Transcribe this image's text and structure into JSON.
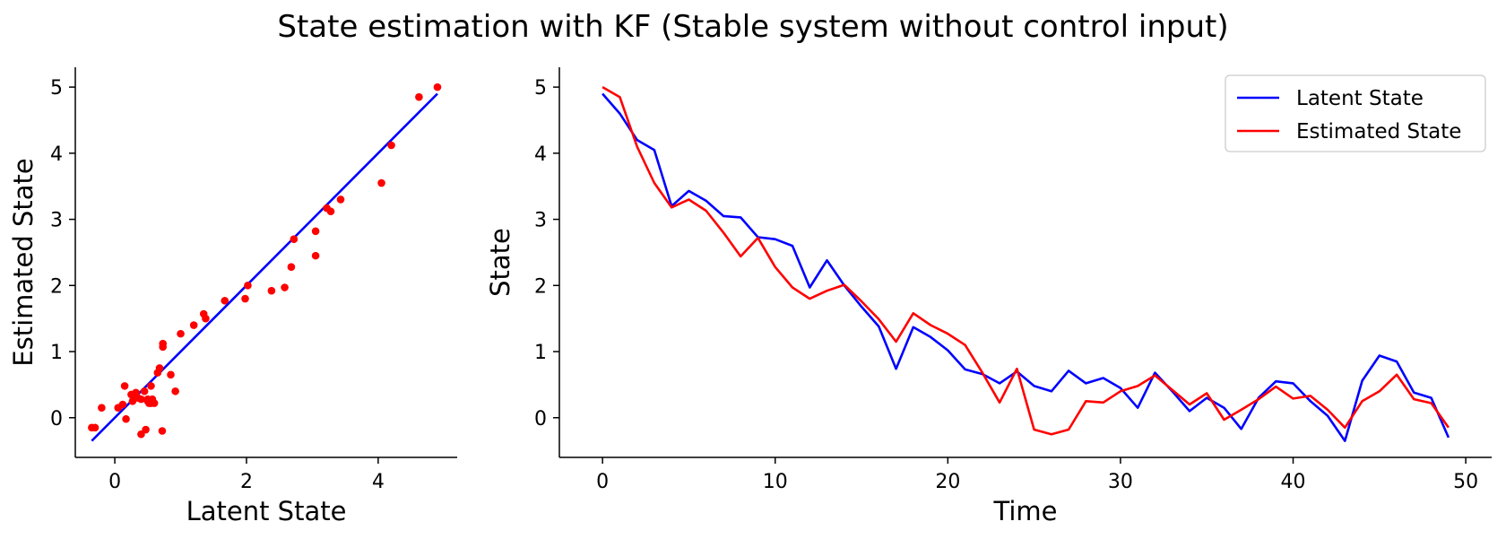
{
  "title": "State estimation with KF (Stable system without control input)",
  "colors": {
    "latent": "#0000ff",
    "estimated": "#ff0000",
    "axis": "#000000"
  },
  "chart_data": [
    {
      "type": "scatter",
      "xlabel": "Latent State",
      "ylabel": "Estimated State",
      "xlim": [
        -0.6,
        5.2
      ],
      "ylim": [
        -0.6,
        5.3
      ],
      "xticks": [
        0,
        2,
        4
      ],
      "yticks": [
        0,
        1,
        2,
        3,
        4,
        5
      ],
      "grid": false,
      "reference_line": {
        "x": [
          -0.35,
          4.9
        ],
        "y": [
          -0.35,
          4.9
        ],
        "color": "#0000ff"
      },
      "points": {
        "color": "#ff0000",
        "x": [
          -0.35,
          -0.3,
          -0.2,
          0.05,
          0.12,
          0.15,
          0.17,
          0.25,
          0.27,
          0.3,
          0.32,
          0.35,
          0.4,
          0.4,
          0.45,
          0.47,
          0.5,
          0.5,
          0.52,
          0.55,
          0.55,
          0.57,
          0.6,
          0.65,
          0.68,
          0.72,
          0.73,
          0.73,
          0.85,
          0.92,
          1.0,
          1.2,
          1.35,
          1.38,
          1.67,
          1.98,
          2.02,
          2.38,
          2.58,
          2.68,
          2.72,
          3.05,
          3.05,
          3.22,
          3.28,
          3.43,
          4.05,
          4.2,
          4.62,
          4.9
        ],
        "y": [
          -0.15,
          -0.15,
          0.15,
          0.15,
          0.2,
          0.48,
          -0.02,
          0.35,
          0.25,
          0.35,
          0.38,
          0.3,
          -0.25,
          0.28,
          0.4,
          -0.18,
          0.28,
          0.25,
          0.22,
          0.48,
          0.22,
          0.28,
          0.22,
          0.68,
          0.75,
          -0.2,
          1.12,
          1.07,
          0.65,
          0.4,
          1.27,
          1.4,
          1.57,
          1.5,
          1.77,
          1.8,
          2.0,
          1.92,
          1.97,
          2.28,
          2.7,
          2.45,
          2.82,
          3.17,
          3.12,
          3.3,
          3.55,
          4.12,
          4.85,
          5.0
        ]
      }
    },
    {
      "type": "line",
      "xlabel": "Time",
      "ylabel": "State",
      "xlim": [
        -2.5,
        51.5
      ],
      "ylim": [
        -0.6,
        5.3
      ],
      "xticks": [
        0,
        10,
        20,
        30,
        40,
        50
      ],
      "yticks": [
        0,
        1,
        2,
        3,
        4,
        5
      ],
      "grid": false,
      "legend": "top-right",
      "x": [
        0,
        1,
        2,
        3,
        4,
        5,
        6,
        7,
        8,
        9,
        10,
        11,
        12,
        13,
        14,
        15,
        16,
        17,
        18,
        19,
        20,
        21,
        22,
        23,
        24,
        25,
        26,
        27,
        28,
        29,
        30,
        31,
        32,
        33,
        34,
        35,
        36,
        37,
        38,
        39,
        40,
        41,
        42,
        43,
        44,
        45,
        46,
        47,
        48,
        49
      ],
      "series": [
        {
          "name": "Latent State",
          "color": "#0000ff",
          "values": [
            4.9,
            4.6,
            4.2,
            4.05,
            3.2,
            3.43,
            3.28,
            3.05,
            3.03,
            2.73,
            2.7,
            2.6,
            1.97,
            2.38,
            2.0,
            1.68,
            1.38,
            0.74,
            1.37,
            1.22,
            1.02,
            0.73,
            0.66,
            0.52,
            0.7,
            0.48,
            0.4,
            0.71,
            0.52,
            0.6,
            0.45,
            0.15,
            0.68,
            0.4,
            0.1,
            0.3,
            0.15,
            -0.17,
            0.3,
            0.55,
            0.52,
            0.25,
            0.03,
            -0.35,
            0.56,
            0.94,
            0.85,
            0.38,
            0.3,
            -0.3
          ]
        },
        {
          "name": "Estimated State",
          "color": "#ff0000",
          "values": [
            5.0,
            4.85,
            4.1,
            3.55,
            3.18,
            3.3,
            3.13,
            2.8,
            2.44,
            2.72,
            2.28,
            1.97,
            1.8,
            1.92,
            2.01,
            1.76,
            1.49,
            1.15,
            1.58,
            1.4,
            1.27,
            1.1,
            0.68,
            0.23,
            0.74,
            -0.18,
            -0.25,
            -0.18,
            0.25,
            0.23,
            0.4,
            0.48,
            0.64,
            0.42,
            0.2,
            0.37,
            -0.03,
            0.12,
            0.28,
            0.47,
            0.29,
            0.33,
            0.12,
            -0.15,
            0.25,
            0.4,
            0.65,
            0.28,
            0.22,
            -0.15
          ]
        }
      ]
    }
  ]
}
